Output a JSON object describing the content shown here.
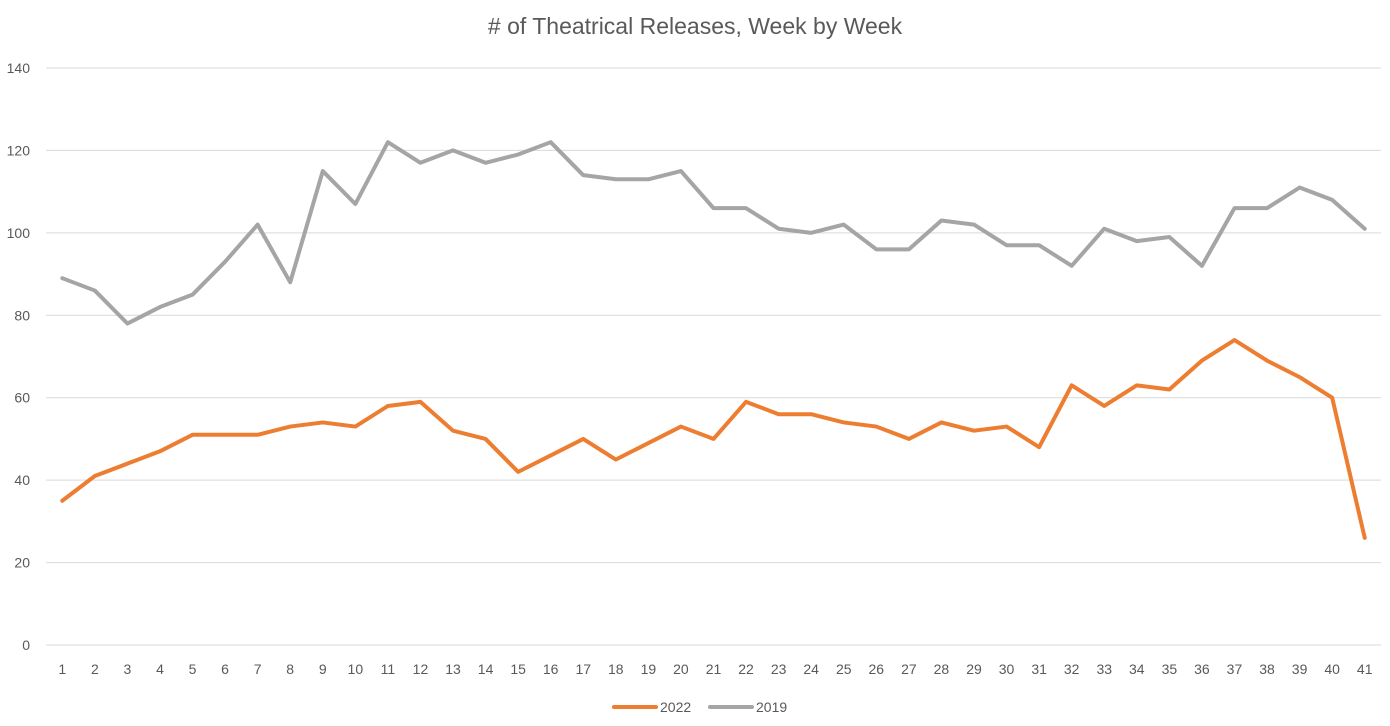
{
  "chart_data": {
    "type": "line",
    "title": "# of Theatrical Releases, Week by Week",
    "xlabel": "",
    "ylabel": "",
    "x": [
      1,
      2,
      3,
      4,
      5,
      6,
      7,
      8,
      9,
      10,
      11,
      12,
      13,
      14,
      15,
      16,
      17,
      18,
      19,
      20,
      21,
      22,
      23,
      24,
      25,
      26,
      27,
      28,
      29,
      30,
      31,
      32,
      33,
      34,
      35,
      36,
      37,
      38,
      39,
      40,
      41
    ],
    "ylim": [
      0,
      140
    ],
    "yticks": [
      0,
      20,
      40,
      60,
      80,
      100,
      120,
      140
    ],
    "grid": true,
    "legend_position": "bottom",
    "series": [
      {
        "name": "2022",
        "color": "#ed7d31",
        "values": [
          35,
          41,
          44,
          47,
          51,
          51,
          51,
          53,
          54,
          53,
          58,
          59,
          52,
          50,
          42,
          46,
          50,
          45,
          49,
          53,
          50,
          59,
          56,
          56,
          54,
          53,
          50,
          54,
          52,
          53,
          48,
          63,
          58,
          63,
          62,
          69,
          74,
          69,
          65,
          60,
          26
        ]
      },
      {
        "name": "2019",
        "color": "#a5a5a5",
        "values": [
          89,
          86,
          78,
          82,
          85,
          93,
          102,
          88,
          115,
          107,
          122,
          117,
          120,
          117,
          119,
          122,
          114,
          113,
          113,
          115,
          106,
          106,
          101,
          100,
          102,
          96,
          96,
          103,
          102,
          97,
          97,
          92,
          101,
          98,
          99,
          92,
          106,
          106,
          111,
          108,
          101
        ]
      }
    ]
  }
}
